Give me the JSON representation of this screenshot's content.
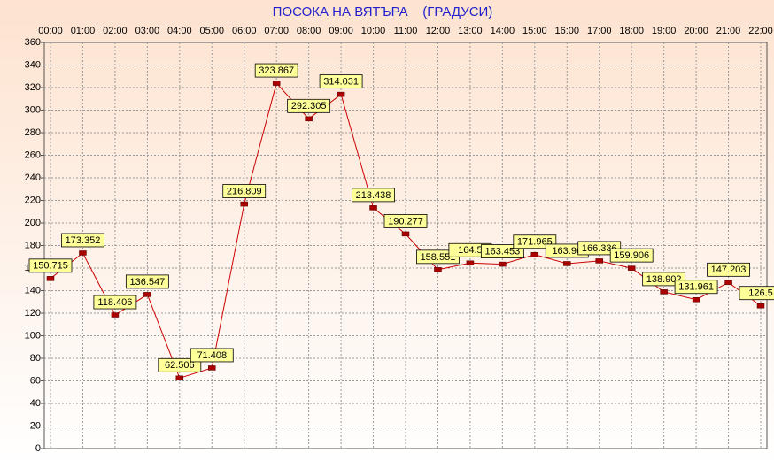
{
  "chart_data": {
    "type": "line",
    "title": "ПОСОКА НА ВЯТЪРА    (ГРАДУСИ)",
    "categories": [
      "00:00",
      "01:00",
      "02:00",
      "03:00",
      "04:00",
      "05:00",
      "06:00",
      "07:00",
      "08:00",
      "09:00",
      "10:00",
      "11:00",
      "12:00",
      "13:00",
      "14:00",
      "15:00",
      "16:00",
      "17:00",
      "18:00",
      "19:00",
      "20:00",
      "21:00",
      "22:00"
    ],
    "series": [
      {
        "name": "ПОСОКА НА ВЯТЪРА",
        "color": "#cc0000",
        "values": [
          150.715,
          173.352,
          118.406,
          136.547,
          62.506,
          71.408,
          216.809,
          323.867,
          292.305,
          314.031,
          213.438,
          190.277,
          158.551,
          164.5,
          163.453,
          171.965,
          163.96,
          166.336,
          159.906,
          138.902,
          131.961,
          147.203,
          126.5
        ]
      }
    ],
    "ylim": [
      0,
      360
    ],
    "yticks": [
      0,
      20,
      40,
      60,
      80,
      100,
      120,
      140,
      160,
      180,
      200,
      220,
      240,
      260,
      280,
      300,
      320,
      340,
      360
    ],
    "grid": true
  }
}
